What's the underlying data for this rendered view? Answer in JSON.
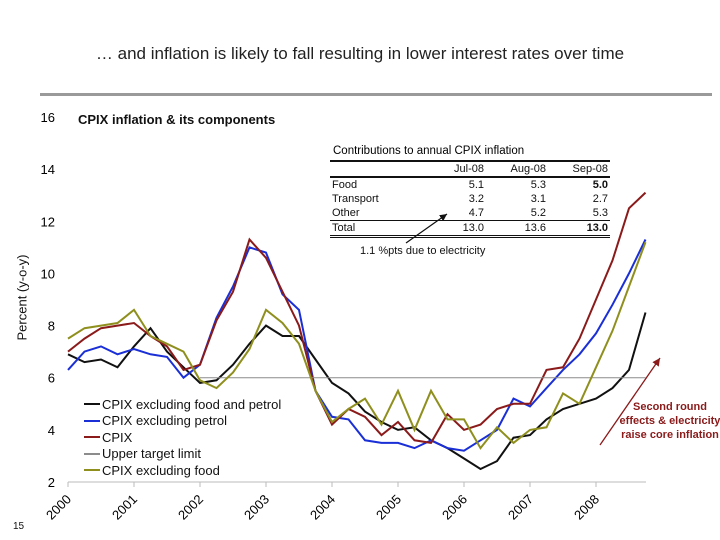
{
  "headline": "… and inflation is likely to fall resulting in lower interest rates over time",
  "page_number": "15",
  "table": {
    "title": "Contributions to annual CPIX inflation",
    "columns": [
      "",
      "Jul-08",
      "Aug-08",
      "Sep-08"
    ],
    "rows": [
      [
        "Food",
        "5.1",
        "5.3",
        "5.0"
      ],
      [
        "Transport",
        "3.2",
        "3.1",
        "2.7"
      ],
      [
        "Other",
        "4.7",
        "5.2",
        "5.3"
      ],
      [
        "Total",
        "13.0",
        "13.6",
        "13.0"
      ]
    ],
    "annotation": "1.1 %pts due to electricity"
  },
  "note": "Second round effects & electricity raise core inflation",
  "note_color": "#8b1a1a",
  "chart_data": {
    "type": "line",
    "title": "CPIX inflation & its components",
    "xlabel": "",
    "ylabel": "Percent (y-o-y)",
    "ylim": [
      2,
      16
    ],
    "yticks": [
      "2",
      "4",
      "6",
      "8",
      "10",
      "12",
      "14",
      "16"
    ],
    "xlim": [
      2000,
      2008.75
    ],
    "xticks": [
      "2000",
      "2001",
      "2002",
      "2003",
      "2004",
      "2005",
      "2006",
      "2007",
      "2008"
    ],
    "x_start": 2000,
    "x_step": 0.25,
    "grid": false,
    "legend": "bottom-left",
    "series": [
      {
        "name": "CPIX excluding food and petrol",
        "color": "#111111",
        "values": [
          6.9,
          6.6,
          6.7,
          6.4,
          7.2,
          7.9,
          7.0,
          6.4,
          5.8,
          5.9,
          6.5,
          7.3,
          8.0,
          7.6,
          7.6,
          6.7,
          5.8,
          5.4,
          4.7,
          4.3,
          4.0,
          4.1,
          3.6,
          3.3,
          2.9,
          2.5,
          2.8,
          3.7,
          3.8,
          4.4,
          4.8,
          5.0,
          5.2,
          5.6,
          6.3,
          8.5
        ]
      },
      {
        "name": "CPIX excluding petrol",
        "color": "#1a2fd6",
        "values": [
          6.3,
          7.0,
          7.2,
          6.9,
          7.1,
          6.9,
          6.8,
          6.0,
          6.5,
          8.3,
          9.5,
          11.0,
          10.8,
          9.2,
          8.6,
          5.5,
          4.5,
          4.4,
          3.6,
          3.5,
          3.5,
          3.3,
          3.6,
          3.3,
          3.2,
          3.6,
          4.0,
          5.2,
          4.9,
          5.6,
          6.3,
          6.9,
          7.7,
          8.8,
          10.0,
          11.3
        ]
      },
      {
        "name": "CPIX",
        "color": "#8b1a1a",
        "values": [
          7.0,
          7.5,
          7.9,
          8.0,
          8.1,
          7.6,
          7.2,
          6.3,
          6.5,
          8.2,
          9.3,
          11.3,
          10.6,
          9.3,
          8.0,
          5.5,
          4.2,
          4.8,
          4.5,
          3.8,
          4.3,
          3.6,
          3.5,
          4.6,
          4.0,
          4.2,
          4.8,
          5.0,
          5.0,
          6.3,
          6.4,
          7.5,
          9.0,
          10.5,
          12.5,
          13.1
        ]
      },
      {
        "name": "Upper target limit",
        "color": "#8c8c8c",
        "x_from": 2002,
        "value": 6
      },
      {
        "name": "CPIX excluding food",
        "color": "#8f8f1e",
        "values": [
          7.5,
          7.9,
          8.0,
          8.1,
          8.6,
          7.6,
          7.3,
          7.0,
          5.9,
          5.6,
          6.2,
          7.1,
          8.6,
          8.1,
          7.3,
          5.5,
          4.3,
          4.8,
          5.2,
          4.2,
          5.5,
          4.0,
          5.5,
          4.4,
          4.4,
          3.3,
          4.1,
          3.5,
          4.0,
          4.1,
          5.4,
          5.0,
          6.4,
          7.8,
          9.5,
          11.2
        ]
      }
    ]
  }
}
